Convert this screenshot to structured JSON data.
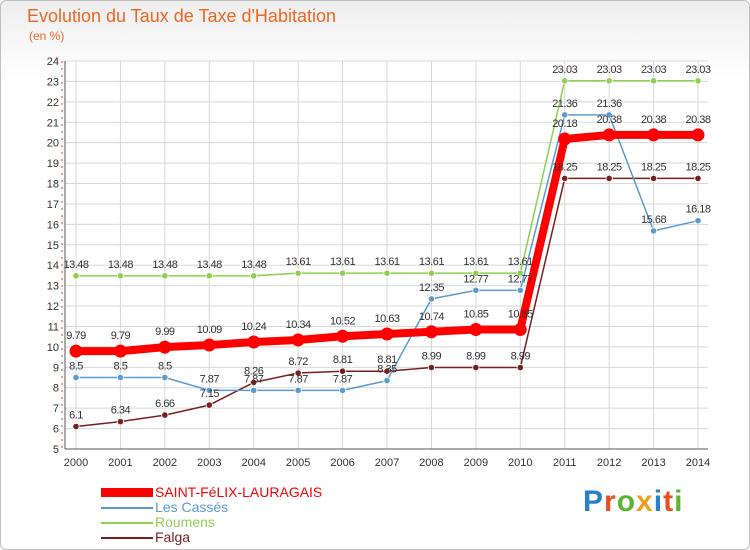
{
  "header": {
    "title": "Evolution du Taux de Taxe d'Habitation",
    "unit": "(en %)"
  },
  "brand": {
    "letters": [
      "P",
      "r",
      "o",
      "x",
      "i",
      "t",
      "i"
    ],
    "colors": [
      "#2a7fc9",
      "#e8501e",
      "#5cb531",
      "#f0a01e",
      "#2a7fc9",
      "#e8501e",
      "#5cb531"
    ]
  },
  "chart_data": {
    "type": "line",
    "x": [
      "2000",
      "2001",
      "2002",
      "2003",
      "2004",
      "2005",
      "2006",
      "2007",
      "2008",
      "2009",
      "2010",
      "2011",
      "2012",
      "2013",
      "2014"
    ],
    "ylim": [
      5,
      24
    ],
    "yticks": [
      5,
      6,
      7,
      8,
      9,
      10,
      11,
      12,
      13,
      14,
      15,
      16,
      17,
      18,
      19,
      20,
      21,
      22,
      23,
      24
    ],
    "grid": true,
    "legend_position": "bottom-left",
    "series": [
      {
        "name": "SAINT-FéLIX-LAURAGAIS",
        "color": "#ff0000",
        "values": [
          9.79,
          9.79,
          9.99,
          10.09,
          10.24,
          10.34,
          10.52,
          10.63,
          10.74,
          10.85,
          10.85,
          20.18,
          20.38,
          20.38,
          20.38
        ],
        "labels": [
          "9.79",
          "9.79",
          "9.99",
          "10.09",
          "10.24",
          "10.34",
          "10.52",
          "10.63",
          "10.74",
          "10.85",
          "10.85",
          "20.18",
          "20.38",
          "20.38",
          "20.38"
        ]
      },
      {
        "name": "Les Cassés",
        "color": "#5a9bd0",
        "values": [
          8.5,
          8.5,
          8.5,
          7.87,
          7.87,
          7.87,
          7.87,
          8.35,
          12.35,
          12.77,
          12.77,
          21.36,
          21.36,
          15.68,
          16.18
        ],
        "labels": [
          "8.5",
          "8.5",
          "8.5",
          "7.87",
          "7.87",
          "7.87",
          "7.87",
          "8.35",
          "12.35",
          "12.77",
          "12.77",
          "21.36",
          "21.36",
          "15.68",
          "16.18"
        ]
      },
      {
        "name": "Roumens",
        "color": "#8fd050",
        "values": [
          13.48,
          13.48,
          13.48,
          13.48,
          13.48,
          13.61,
          13.61,
          13.61,
          13.61,
          13.61,
          13.61,
          23.03,
          23.03,
          23.03,
          23.03
        ],
        "labels": [
          "13.48",
          "13.48",
          "13.48",
          "13.48",
          "13.48",
          "13.61",
          "13.61",
          "13.61",
          "13.61",
          "13.61",
          "13.61",
          "23.03",
          "23.03",
          "23.03",
          "23.03"
        ]
      },
      {
        "name": "Falga",
        "color": "#7a1f1f",
        "values": [
          6.1,
          6.34,
          6.66,
          7.15,
          8.26,
          8.72,
          8.81,
          8.81,
          8.99,
          8.99,
          8.99,
          18.25,
          18.25,
          18.25,
          18.25
        ],
        "labels": [
          "6.1",
          "6.34",
          "6.66",
          "7.15",
          "8.26",
          "8.72",
          "8.81",
          "8.81",
          "8.99",
          "8.99",
          "8.99",
          "18.25",
          "18.25",
          "18.25",
          "18.25"
        ]
      }
    ]
  }
}
